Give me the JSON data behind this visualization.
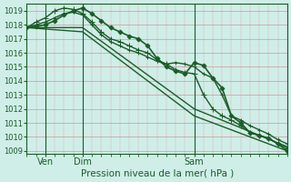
{
  "title": "Pression niveau de la mer( hPa )",
  "xlabel": "Pression niveau de la mer( hPa )",
  "ylim": [
    1008.8,
    1019.5
  ],
  "background_color": "#d0eee8",
  "grid_color_major": "#cc9999",
  "grid_color_minor": "#ddaaaa",
  "line_color": "#1a5c28",
  "xtick_labels": [
    "Ven",
    "Dim",
    "Sam"
  ],
  "xtick_positions": [
    12,
    36,
    108
  ],
  "vline_positions": [
    12,
    36,
    108
  ],
  "ytick_positions": [
    1009,
    1010,
    1011,
    1012,
    1013,
    1014,
    1015,
    1016,
    1017,
    1018,
    1019
  ],
  "xlim": [
    0,
    168
  ],
  "series": [
    {
      "x": [
        0,
        6,
        12,
        18,
        24,
        30,
        36,
        42,
        48,
        54,
        60,
        66,
        72,
        78,
        84,
        90,
        96,
        102,
        108,
        114,
        120,
        126,
        132,
        138,
        144,
        150,
        156,
        162,
        168
      ],
      "y": [
        1017.8,
        1017.9,
        1018.0,
        1018.3,
        1018.7,
        1019.0,
        1019.2,
        1018.8,
        1018.3,
        1017.8,
        1017.5,
        1017.2,
        1017.0,
        1016.5,
        1015.6,
        1015.0,
        1014.7,
        1014.5,
        1015.3,
        1015.1,
        1014.2,
        1013.5,
        1011.5,
        1011.0,
        1010.3,
        1010.1,
        1009.9,
        1009.5,
        1009.0
      ],
      "marker": "D",
      "ms": 2.5,
      "lw": 1.2
    },
    {
      "x": [
        0,
        6,
        12,
        18,
        24,
        30,
        36,
        42,
        48,
        54,
        60,
        66,
        72,
        78,
        84,
        90,
        96,
        102,
        108,
        114,
        120,
        126,
        132,
        138,
        144,
        150,
        156,
        162,
        168
      ],
      "y": [
        1017.8,
        1018.2,
        1018.5,
        1019.0,
        1019.2,
        1019.1,
        1018.8,
        1018.2,
        1017.5,
        1017.0,
        1016.8,
        1016.5,
        1016.2,
        1016.0,
        1015.5,
        1015.2,
        1014.8,
        1014.6,
        1014.5,
        1013.0,
        1012.0,
        1011.5,
        1011.2,
        1010.8,
        1010.3,
        1010.1,
        1009.9,
        1009.5,
        1009.2
      ],
      "marker": "+",
      "ms": 4,
      "lw": 1.0
    },
    {
      "x": [
        0,
        36,
        108,
        168
      ],
      "y": [
        1017.8,
        1017.8,
        1012.0,
        1009.3
      ],
      "marker": null,
      "ms": 0,
      "lw": 1.0
    },
    {
      "x": [
        0,
        36,
        108,
        168
      ],
      "y": [
        1017.8,
        1017.5,
        1011.5,
        1009.0
      ],
      "marker": null,
      "ms": 0,
      "lw": 1.0
    },
    {
      "x": [
        0,
        6,
        12,
        18,
        24,
        30,
        36,
        42,
        48,
        54,
        60,
        66,
        72,
        78,
        84,
        90,
        96,
        102,
        108,
        114,
        120,
        126,
        132,
        138,
        144,
        150,
        156,
        162,
        168
      ],
      "y": [
        1017.8,
        1018.0,
        1018.2,
        1018.5,
        1018.8,
        1018.9,
        1018.7,
        1018.0,
        1017.3,
        1016.8,
        1016.5,
        1016.2,
        1016.0,
        1015.7,
        1015.4,
        1015.2,
        1015.3,
        1015.2,
        1015.0,
        1014.5,
        1014.2,
        1013.0,
        1011.5,
        1011.2,
        1010.8,
        1010.5,
        1010.2,
        1009.8,
        1009.5
      ],
      "marker": "+",
      "ms": 3.5,
      "lw": 1.0
    }
  ]
}
